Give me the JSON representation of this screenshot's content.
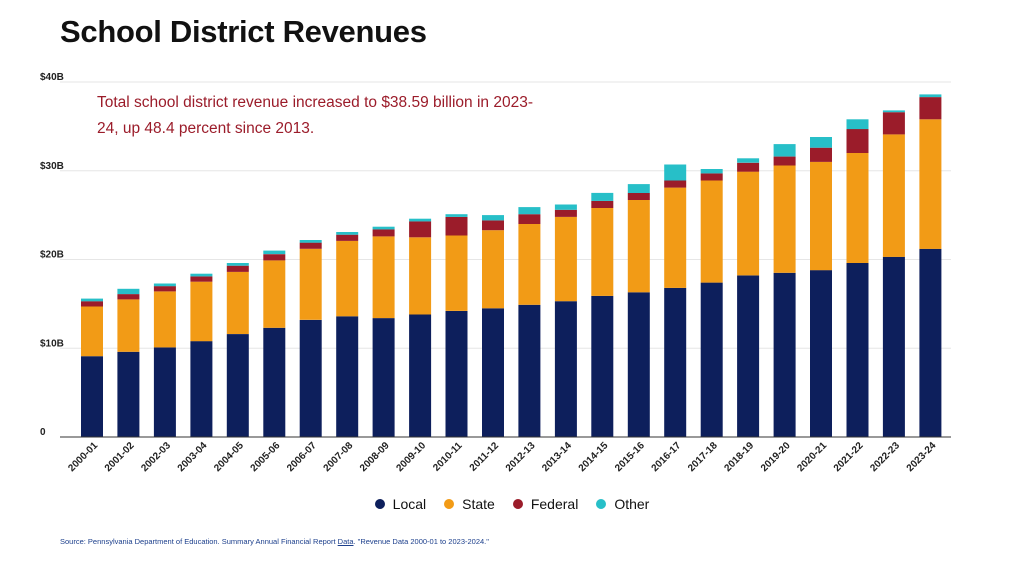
{
  "title": "School District Revenues",
  "annotation": "Total school district revenue increased to $38.59 billion in 2023-24, up 48.4 percent since 2013.",
  "source": {
    "prefix": "Source: Pennsylvania Department of Education. Summary Annual Financial Report ",
    "link": "Data",
    "suffix": ". \"Revenue Data 2000-01 to 2023-2024.\""
  },
  "colors": {
    "Local": "#0d1f5c",
    "State": "#f29b16",
    "Federal": "#9b1c2a",
    "Other": "#27bfc8",
    "axis": "#333333"
  },
  "chart_data": {
    "type": "bar",
    "stacked": true,
    "title": "School District Revenues",
    "categories": [
      "2000-01",
      "2001-02",
      "2002-03",
      "2003-04",
      "2004-05",
      "2005-06",
      "2006-07",
      "2007-08",
      "2008-09",
      "2009-10",
      "2010-11",
      "2011-12",
      "2012-13",
      "2013-14",
      "2014-15",
      "2015-16",
      "2016-17",
      "2017-18",
      "2018-19",
      "2019-20",
      "2020-21",
      "2021-22",
      "2022-23",
      "2023-24"
    ],
    "series": [
      {
        "name": "Local",
        "values": [
          9.1,
          9.6,
          10.1,
          10.8,
          11.6,
          12.3,
          13.2,
          13.6,
          13.4,
          13.8,
          14.2,
          14.5,
          14.9,
          15.3,
          15.9,
          16.3,
          16.8,
          17.4,
          18.2,
          18.5,
          18.8,
          19.6,
          20.3,
          21.2
        ]
      },
      {
        "name": "State",
        "values": [
          5.6,
          5.9,
          6.3,
          6.7,
          7.0,
          7.6,
          8.0,
          8.5,
          9.2,
          8.7,
          8.5,
          8.8,
          9.1,
          9.5,
          9.9,
          10.4,
          11.3,
          11.5,
          11.7,
          12.1,
          12.2,
          12.4,
          13.8,
          14.6
        ]
      },
      {
        "name": "Federal",
        "values": [
          0.6,
          0.6,
          0.6,
          0.6,
          0.7,
          0.7,
          0.7,
          0.7,
          0.8,
          1.8,
          2.1,
          1.1,
          1.1,
          0.8,
          0.8,
          0.8,
          0.8,
          0.8,
          1.0,
          1.0,
          1.6,
          2.7,
          2.5,
          2.5
        ]
      },
      {
        "name": "Other",
        "values": [
          0.3,
          0.6,
          0.3,
          0.3,
          0.3,
          0.4,
          0.3,
          0.3,
          0.3,
          0.3,
          0.3,
          0.6,
          0.8,
          0.6,
          0.9,
          1.0,
          1.8,
          0.5,
          0.5,
          1.4,
          1.2,
          1.1,
          0.2,
          0.3
        ]
      }
    ],
    "y_ticks": [
      0,
      10,
      20,
      30,
      40
    ],
    "y_tick_labels": [
      "0",
      "$10B",
      "$20B",
      "$30B",
      "$40B"
    ],
    "ylim": [
      0,
      40
    ],
    "grid": true,
    "legend": [
      "Local",
      "State",
      "Federal",
      "Other"
    ],
    "legend_position": "bottom"
  }
}
